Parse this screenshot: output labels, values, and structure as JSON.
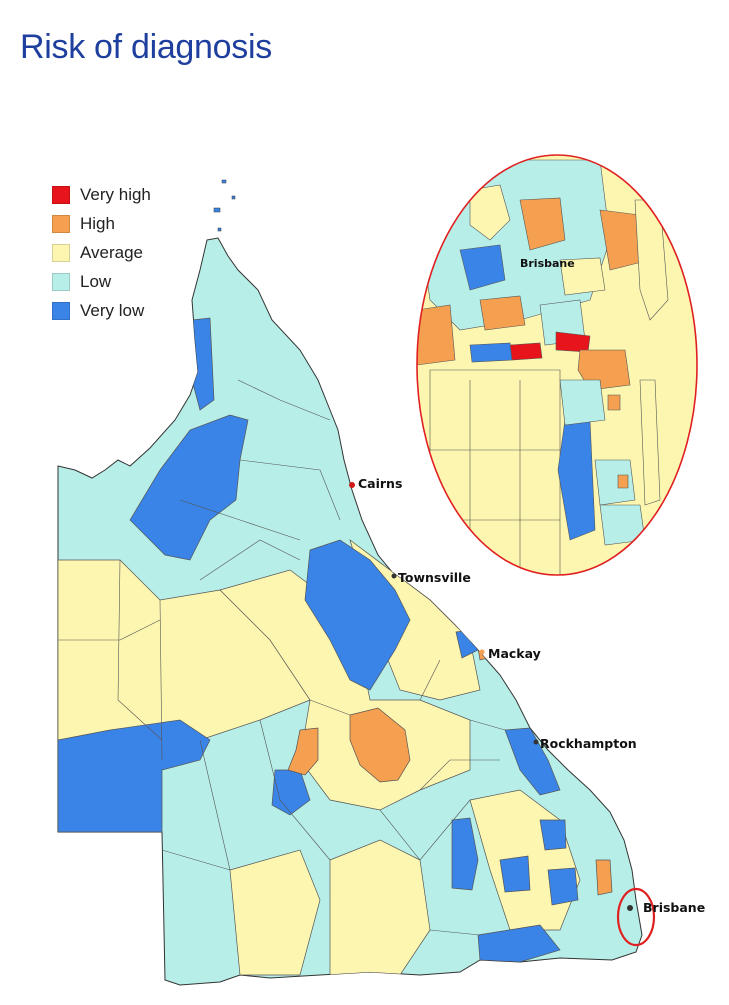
{
  "title": "Risk of diagnosis",
  "legend": [
    {
      "label": "Very high",
      "color": "#e8141b"
    },
    {
      "label": "High",
      "color": "#f5a050"
    },
    {
      "label": "Average",
      "color": "#fdf6b0"
    },
    {
      "label": "Low",
      "color": "#b7efe8"
    },
    {
      "label": "Very low",
      "color": "#3a84e8"
    }
  ],
  "cities": {
    "cairns": "Cairns",
    "townsville": "Townsville",
    "mackay": "Mackay",
    "rockhampton": "Rockhampton",
    "brisbane": "Brisbane"
  },
  "inset": {
    "label": "Brisbane",
    "outline_color": "#e02020"
  }
}
